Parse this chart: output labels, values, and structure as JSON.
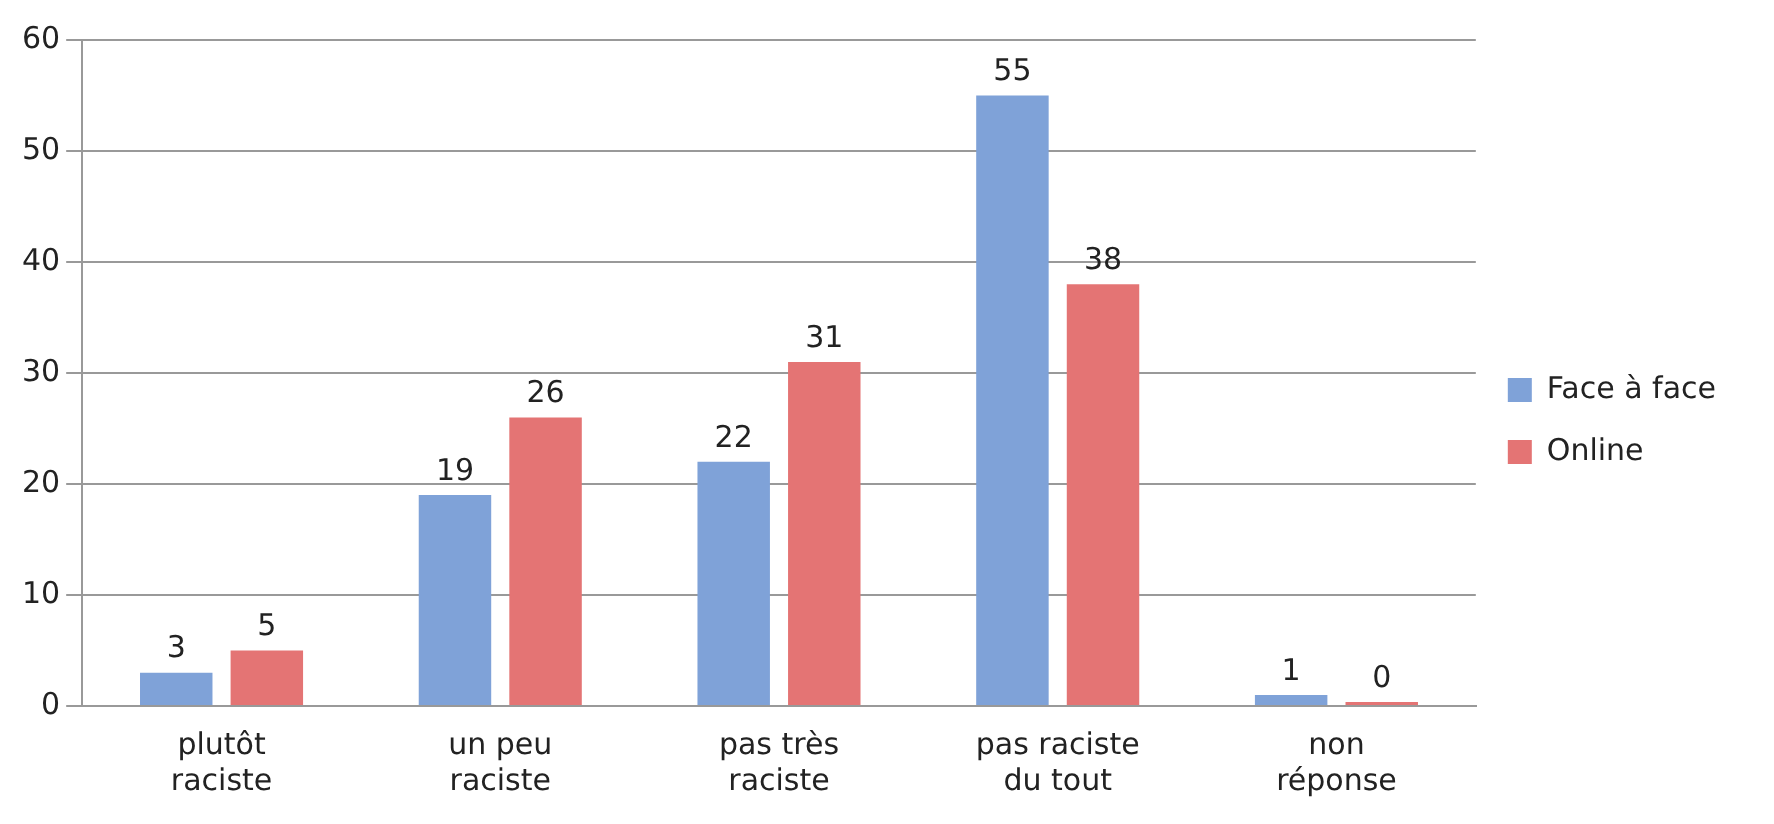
{
  "chart_data": {
    "type": "bar",
    "categories": [
      "plutôt\nraciste",
      "un peu\nraciste",
      "pas très\nraciste",
      "pas raciste\ndu tout",
      "non\nréponse"
    ],
    "series": [
      {
        "name": "Face à face",
        "color": "#7fa2d8",
        "values": [
          3,
          19,
          22,
          55,
          1
        ]
      },
      {
        "name": "Online",
        "color": "#e47474",
        "values": [
          5,
          26,
          31,
          38,
          0
        ]
      }
    ],
    "ylim": [
      0,
      60
    ],
    "yticks": [
      0,
      10,
      20,
      30,
      40,
      50,
      60
    ],
    "grid": "y",
    "legend": "right",
    "data_labels": true
  }
}
